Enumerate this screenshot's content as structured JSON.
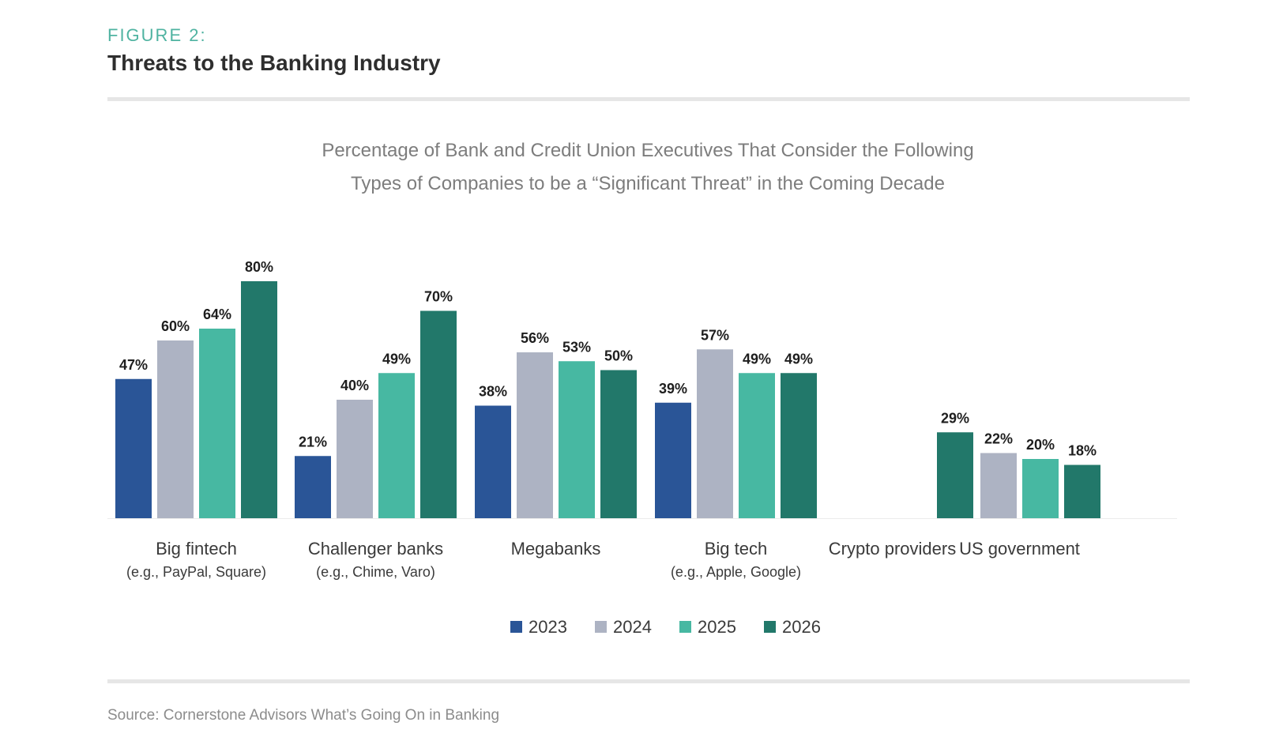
{
  "header": {
    "figure_label": "FIGURE 2:",
    "title": "Threats to the Banking Industry"
  },
  "chart_data": {
    "type": "bar",
    "title": "Percentage of Bank and Credit Union Executives That Consider the Following Types of Companies to be a “Significant Threat” in the Coming Decade",
    "subtitle_lines": [
      "Percentage of Bank and Credit Union Executives That Consider the Following",
      "Types of Companies to be a “Significant Threat” in the Coming Decade"
    ],
    "categories": [
      {
        "label": "Big fintech",
        "sublabel": "(e.g., PayPal, Square)"
      },
      {
        "label": "Challenger banks",
        "sublabel": "(e.g., Chime, Varo)"
      },
      {
        "label": "Megabanks",
        "sublabel": ""
      },
      {
        "label": "Big tech",
        "sublabel": "(e.g., Apple, Google)"
      },
      {
        "label": "Crypto providers",
        "sublabel": ""
      },
      {
        "label": "US government",
        "sublabel": ""
      }
    ],
    "series": [
      {
        "name": "2023",
        "color": "#2a5597",
        "values": [
          47,
          21,
          38,
          39,
          null,
          null
        ]
      },
      {
        "name": "2024",
        "color": "#adb3c3",
        "values": [
          60,
          40,
          56,
          57,
          null,
          22
        ]
      },
      {
        "name": "2025",
        "color": "#47b8a2",
        "values": [
          64,
          49,
          53,
          49,
          null,
          20
        ]
      },
      {
        "name": "2026",
        "color": "#22786a",
        "values": [
          80,
          70,
          50,
          49,
          29,
          18
        ]
      }
    ],
    "value_suffix": "%",
    "ylim": [
      0,
      100
    ],
    "xlabel": "",
    "ylabel": "",
    "grid": false,
    "legend_position": "bottom-center"
  },
  "footer": {
    "source": "Source: Cornerstone Advisors What’s Going On in Banking"
  }
}
